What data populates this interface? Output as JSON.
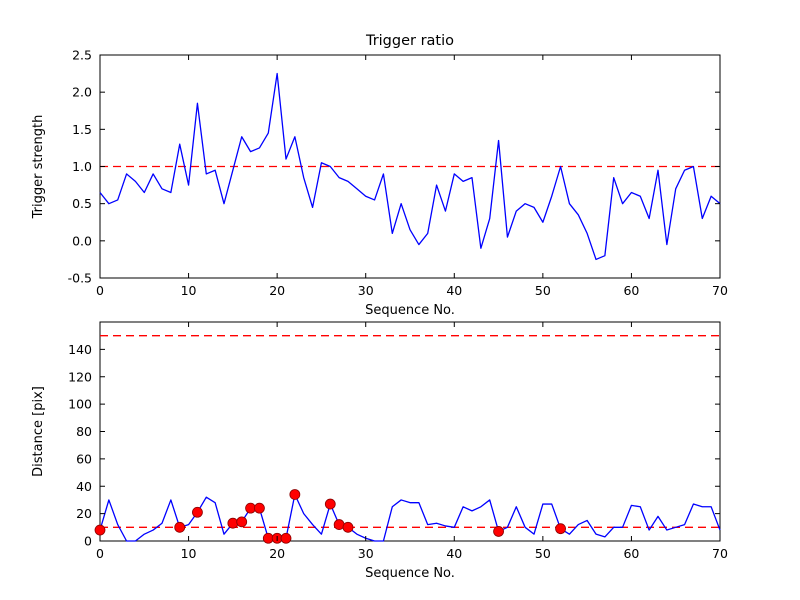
{
  "figure": {
    "background": "#ffffff",
    "axis_color": "#000000",
    "line_color": "#0000ff",
    "dashed_line_color": "#ff0000",
    "marker_face_color": "#ff0000",
    "marker_edge_color": "#8b0000"
  },
  "chart_data": [
    {
      "type": "line",
      "title": "Trigger ratio",
      "xlabel": "Sequence No.",
      "ylabel": "Trigger strength",
      "xlim": [
        0,
        70
      ],
      "ylim": [
        -0.5,
        2.5
      ],
      "xticks": [
        0,
        10,
        20,
        30,
        40,
        50,
        60,
        70
      ],
      "xtick_labels": [
        "0",
        "10",
        "20",
        "30",
        "40",
        "50",
        "60",
        "70"
      ],
      "yticks": [
        -0.5,
        0.0,
        0.5,
        1.0,
        1.5,
        2.0,
        2.5
      ],
      "ytick_labels": [
        "-0.5",
        "0.0",
        "0.5",
        "1.0",
        "1.5",
        "2.0",
        "2.5"
      ],
      "grid": false,
      "legend": null,
      "hlines": [
        1.0
      ],
      "x_start": 0,
      "x_step": 1,
      "values": [
        0.65,
        0.5,
        0.55,
        0.9,
        0.8,
        0.65,
        0.9,
        0.7,
        0.65,
        1.3,
        0.75,
        1.85,
        0.9,
        0.95,
        0.5,
        0.95,
        1.4,
        1.2,
        1.25,
        1.45,
        2.25,
        1.1,
        1.4,
        0.85,
        0.45,
        1.05,
        1.0,
        0.85,
        0.8,
        0.7,
        0.6,
        0.55,
        0.9,
        0.1,
        0.5,
        0.15,
        -0.05,
        0.1,
        0.75,
        0.4,
        0.9,
        0.8,
        0.85,
        -0.1,
        0.3,
        1.35,
        0.05,
        0.4,
        0.5,
        0.45,
        0.25,
        0.6,
        1.0,
        0.5,
        0.35,
        0.1,
        -0.25,
        -0.2,
        0.85,
        0.5,
        0.65,
        0.6,
        0.3,
        0.95,
        -0.05,
        0.7,
        0.95,
        1.0,
        0.3,
        0.6,
        0.5
      ],
      "markers": []
    },
    {
      "type": "line",
      "title": "",
      "xlabel": "Sequence No.",
      "ylabel": "Distance [pix]",
      "xlim": [
        0,
        70
      ],
      "ylim": [
        0,
        160
      ],
      "xticks": [
        0,
        10,
        20,
        30,
        40,
        50,
        60,
        70
      ],
      "xtick_labels": [
        "0",
        "10",
        "20",
        "30",
        "40",
        "50",
        "60",
        "70"
      ],
      "yticks": [
        0,
        20,
        40,
        60,
        80,
        100,
        120,
        140
      ],
      "ytick_labels": [
        "0",
        "20",
        "40",
        "60",
        "80",
        "100",
        "120",
        "140"
      ],
      "grid": false,
      "legend": null,
      "hlines": [
        150,
        10
      ],
      "x_start": 0,
      "x_step": 1,
      "values": [
        8,
        30,
        12,
        0,
        0,
        5,
        8,
        13,
        30,
        10,
        12,
        21,
        32,
        28,
        5,
        13,
        14,
        24,
        24,
        2,
        2,
        2,
        34,
        20,
        12,
        5,
        27,
        12,
        10,
        5,
        2,
        0,
        0,
        25,
        30,
        28,
        28,
        12,
        13,
        11,
        10,
        25,
        22,
        25,
        30,
        7,
        10,
        25,
        10,
        5,
        27,
        27,
        9,
        5,
        12,
        15,
        5,
        3,
        10,
        10,
        26,
        25,
        8,
        18,
        8,
        10,
        12,
        27,
        25,
        25,
        8
      ],
      "markers": [
        [
          0,
          8
        ],
        [
          9,
          10
        ],
        [
          11,
          21
        ],
        [
          15,
          13
        ],
        [
          16,
          14
        ],
        [
          17,
          24
        ],
        [
          18,
          24
        ],
        [
          19,
          2
        ],
        [
          20,
          2
        ],
        [
          21,
          2
        ],
        [
          22,
          34
        ],
        [
          26,
          27
        ],
        [
          27,
          12
        ],
        [
          28,
          10
        ],
        [
          45,
          7
        ],
        [
          52,
          9
        ]
      ]
    }
  ]
}
